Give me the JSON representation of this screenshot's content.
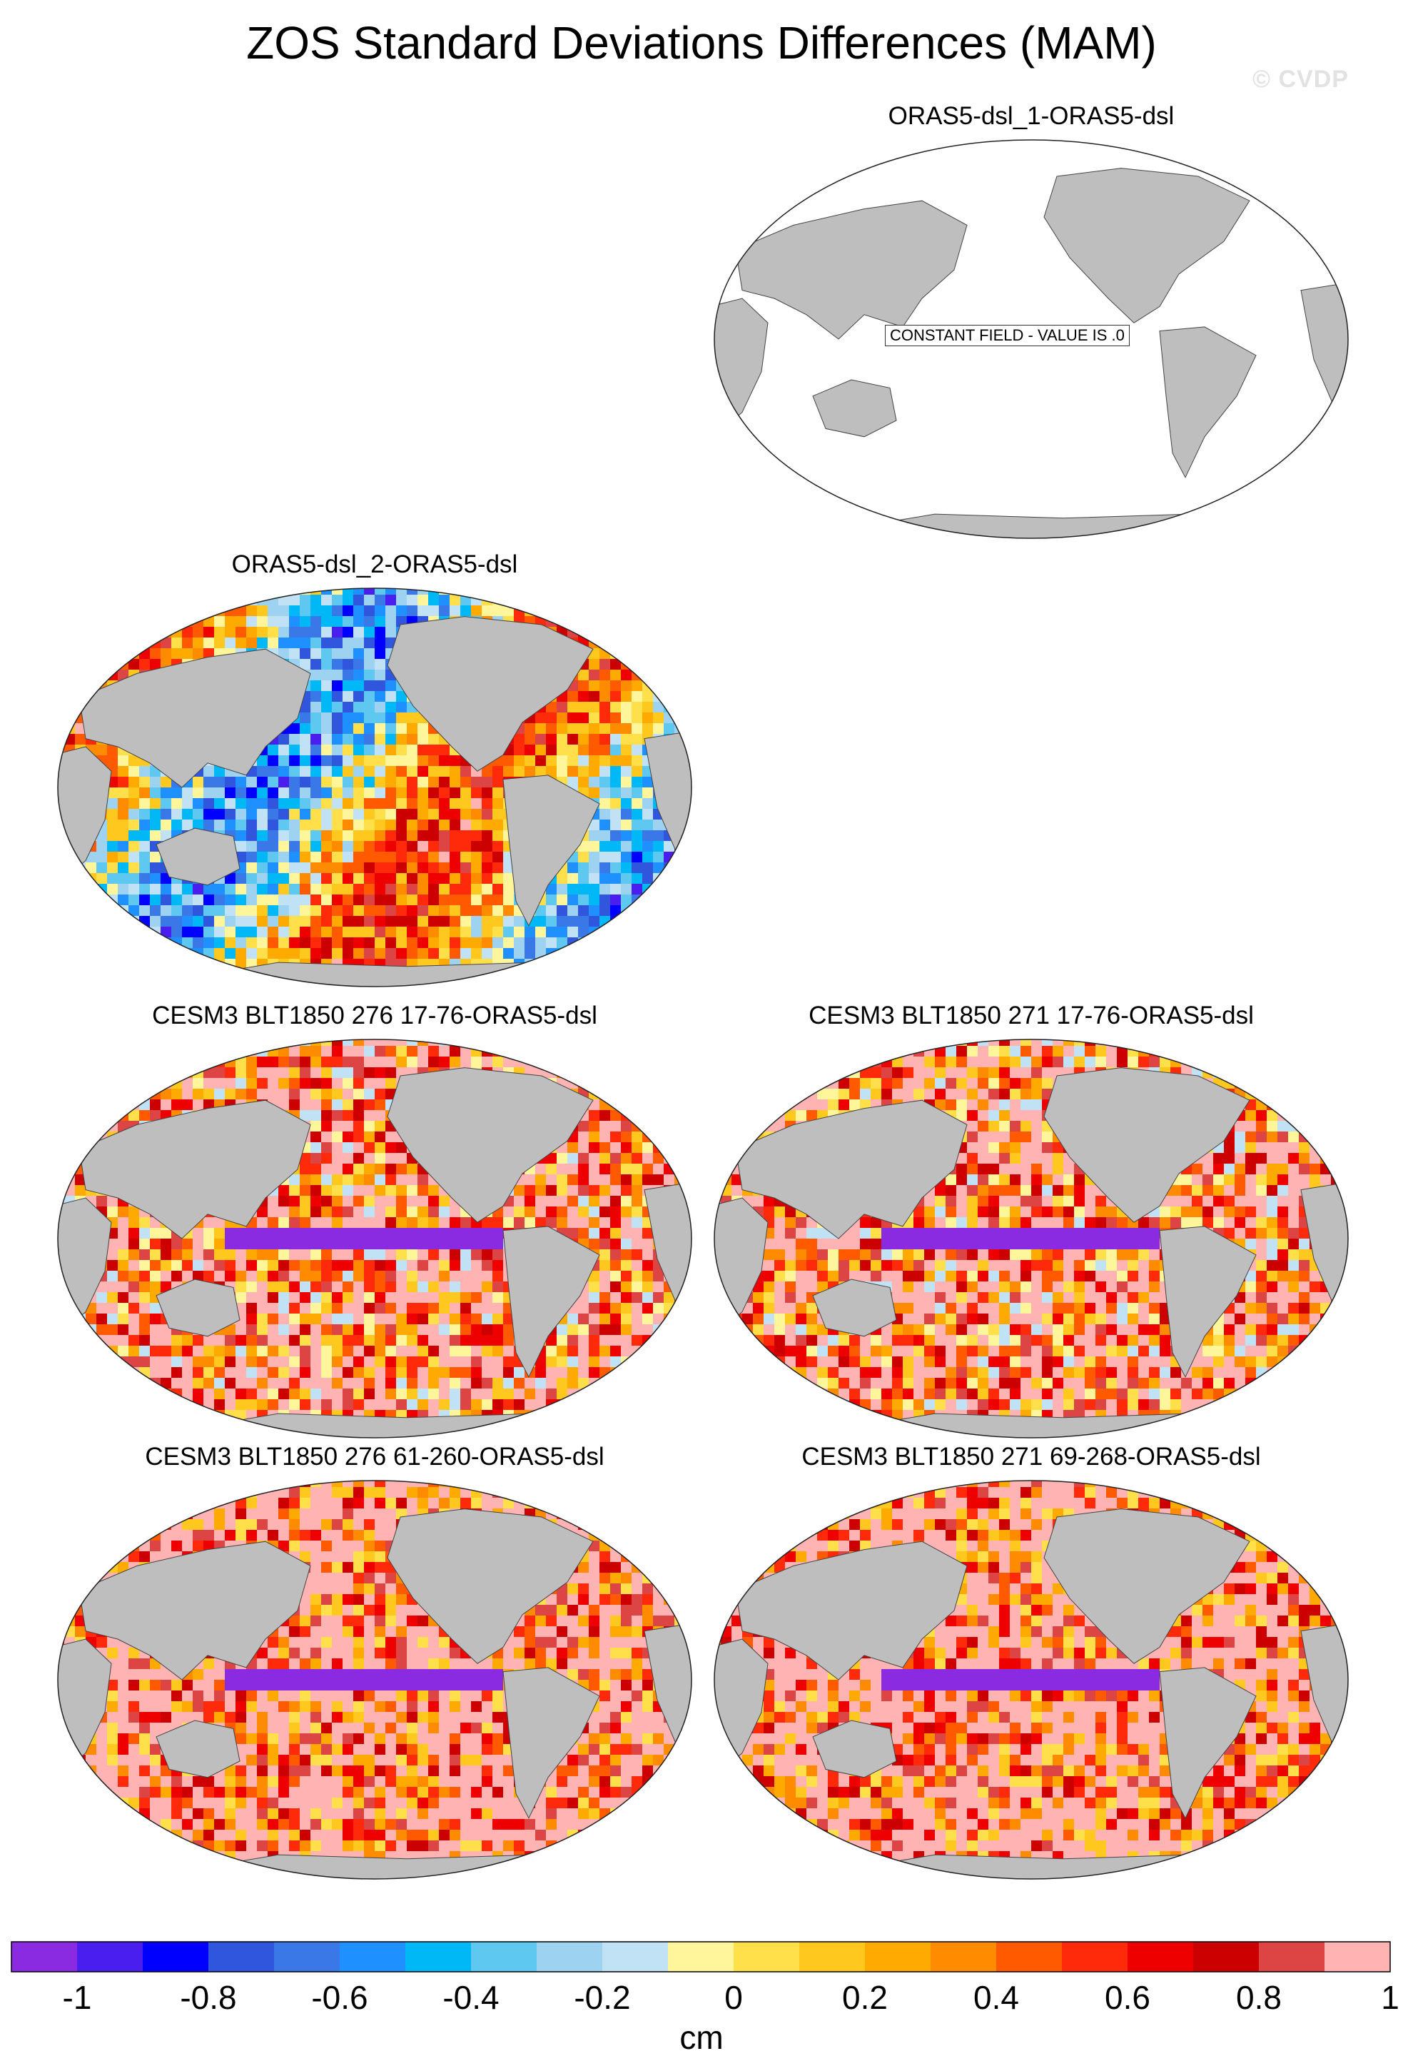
{
  "title": "ZOS Standard Deviations Differences (MAM)",
  "watermark": "© CVDP",
  "panels": [
    {
      "title": "ORAS5-dsl_1-ORAS5-dsl",
      "kind": "constant",
      "constant_label": "CONSTANT FIELD - VALUE IS .0"
    },
    {
      "title": "ORAS5-dsl_2-ORAS5-dsl",
      "kind": "field",
      "seed": 7,
      "bias": 0.0
    },
    {
      "title": "CESM3 BLT1850 276 17-76-ORAS5-dsl",
      "kind": "field",
      "seed": 11,
      "bias": 0.6
    },
    {
      "title": "CESM3 BLT1850 271 17-76-ORAS5-dsl",
      "kind": "field",
      "seed": 13,
      "bias": 0.6
    },
    {
      "title": "CESM3 BLT1850 276 61-260-ORAS5-dsl",
      "kind": "field",
      "seed": 17,
      "bias": 0.8
    },
    {
      "title": "CESM3 BLT1850 271 69-268-ORAS5-dsl",
      "kind": "field",
      "seed": 19,
      "bias": 0.8
    }
  ],
  "chart_data": {
    "type": "heatmap",
    "projection": "Robinson (Pacific-centered)",
    "variable": "ZOS standard deviation difference",
    "season": "MAM",
    "units": "cm",
    "levels": [
      -1,
      -0.9,
      -0.8,
      -0.7,
      -0.6,
      -0.5,
      -0.4,
      -0.3,
      -0.2,
      -0.1,
      0,
      0.1,
      0.2,
      0.3,
      0.4,
      0.5,
      0.6,
      0.7,
      0.8,
      0.9,
      1
    ],
    "colorbar_tick_labels": [
      "-1",
      "-0.8",
      "-0.6",
      "-0.4",
      "-0.2",
      "0",
      "0.2",
      "0.4",
      "0.6",
      "0.8",
      "1"
    ],
    "colorbar_colors": [
      "#8a2be2",
      "#4b1ef0",
      "#0000ff",
      "#2f56dd",
      "#3a78e8",
      "#1e90ff",
      "#00b8f5",
      "#5ec8f0",
      "#9dd3f0",
      "#c0e2f4",
      "#fff59a",
      "#ffe04b",
      "#ffc81e",
      "#ffaa00",
      "#ff8c00",
      "#ff5a00",
      "#ff2a0a",
      "#ee0000",
      "#cc0000",
      "#dd4444",
      "#ffb3b3"
    ],
    "land_color": "#bebebe",
    "constant_value": 0,
    "grid": false,
    "colorbar_position": "bottom"
  }
}
